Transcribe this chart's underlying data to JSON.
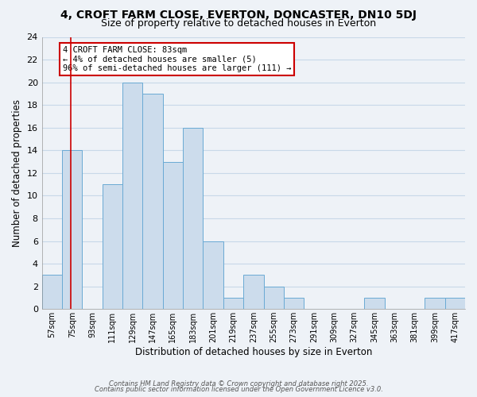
{
  "title": "4, CROFT FARM CLOSE, EVERTON, DONCASTER, DN10 5DJ",
  "subtitle": "Size of property relative to detached houses in Everton",
  "xlabel": "Distribution of detached houses by size in Everton",
  "ylabel": "Number of detached properties",
  "bin_edges": [
    57,
    75,
    93,
    111,
    129,
    147,
    165,
    183,
    201,
    219,
    237,
    255,
    273,
    291,
    309,
    327,
    345,
    363,
    381,
    399,
    417,
    435
  ],
  "bin_labels": [
    "57sqm",
    "75sqm",
    "93sqm",
    "111sqm",
    "129sqm",
    "147sqm",
    "165sqm",
    "183sqm",
    "201sqm",
    "219sqm",
    "237sqm",
    "255sqm",
    "273sqm",
    "291sqm",
    "309sqm",
    "327sqm",
    "345sqm",
    "363sqm",
    "381sqm",
    "399sqm",
    "417sqm"
  ],
  "counts": [
    3,
    14,
    0,
    11,
    20,
    19,
    13,
    16,
    6,
    1,
    3,
    2,
    1,
    0,
    0,
    0,
    1,
    0,
    0,
    1,
    1
  ],
  "bar_color": "#ccdcec",
  "bar_edgecolor": "#6aaad4",
  "grid_color": "#c8d8e8",
  "reference_line_x": 83,
  "reference_line_color": "#cc0000",
  "ylim": [
    0,
    24
  ],
  "yticks": [
    0,
    2,
    4,
    6,
    8,
    10,
    12,
    14,
    16,
    18,
    20,
    22,
    24
  ],
  "annotation_title": "4 CROFT FARM CLOSE: 83sqm",
  "annotation_line1": "← 4% of detached houses are smaller (5)",
  "annotation_line2": "96% of semi-detached houses are larger (111) →",
  "annotation_box_color": "#ffffff",
  "annotation_box_edgecolor": "#cc0000",
  "footer1": "Contains HM Land Registry data © Crown copyright and database right 2025.",
  "footer2": "Contains public sector information licensed under the Open Government Licence v3.0.",
  "bg_color": "#eef2f7",
  "title_fontsize": 10,
  "subtitle_fontsize": 9
}
